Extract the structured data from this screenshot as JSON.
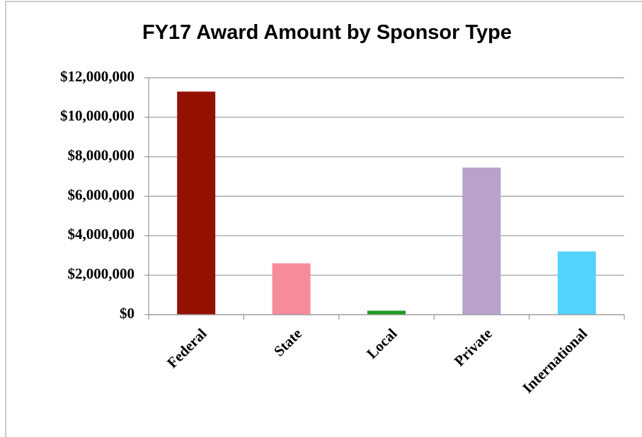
{
  "chart_data": {
    "type": "bar",
    "title": "FY17 Award Amount by Sponsor Type",
    "categories": [
      "Federal",
      "State",
      "Local",
      "Private",
      "International"
    ],
    "values": [
      11300000,
      2600000,
      200000,
      7450000,
      3200000
    ],
    "colors": [
      "#941100",
      "#f78a9b",
      "#1e9a1e",
      "#b9a1cb",
      "#52d3fb"
    ],
    "ylim": [
      0,
      12000000
    ],
    "yticks": [
      {
        "value": 0,
        "label": "$0"
      },
      {
        "value": 2000000,
        "label": "$2,000,000"
      },
      {
        "value": 4000000,
        "label": "$4,000,000"
      },
      {
        "value": 6000000,
        "label": "$6,000,000"
      },
      {
        "value": 8000000,
        "label": "$8,000,000"
      },
      {
        "value": 10000000,
        "label": "$10,000,000"
      },
      {
        "value": 12000000,
        "label": "$12,000,000"
      }
    ],
    "grid": true
  }
}
